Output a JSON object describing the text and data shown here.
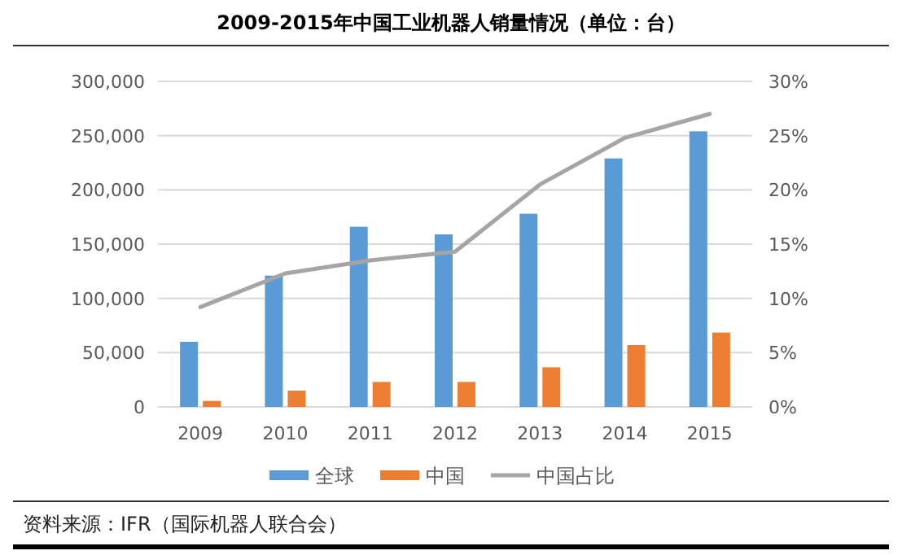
{
  "chart_data": {
    "type": "bar",
    "title": "2009-2015年中国工业机器人销量情况（单位：台）",
    "categories": [
      "2009",
      "2010",
      "2011",
      "2012",
      "2013",
      "2014",
      "2015"
    ],
    "series": [
      {
        "name": "全球",
        "color": "#5b9bd5",
        "values": [
          60000,
          121000,
          166000,
          159000,
          178000,
          229000,
          254000
        ]
      },
      {
        "name": "中国",
        "color": "#ed7d31",
        "values": [
          5500,
          15000,
          23000,
          23000,
          36500,
          57000,
          68500
        ]
      },
      {
        "name": "中国占比",
        "type": "line",
        "axis": "y2",
        "color": "#a5a5a5",
        "values": [
          9.2,
          12.3,
          13.5,
          14.3,
          20.5,
          24.8,
          27.0
        ]
      }
    ],
    "ylim": [
      0,
      300000
    ],
    "yticks": [
      {
        "value": 0,
        "label": "0"
      },
      {
        "value": 50000,
        "label": "50,000"
      },
      {
        "value": 100000,
        "label": "100,000"
      },
      {
        "value": 150000,
        "label": "150,000"
      },
      {
        "value": 200000,
        "label": "200,000"
      },
      {
        "value": 250000,
        "label": "250,000"
      },
      {
        "value": 300000,
        "label": "300,000"
      }
    ],
    "y2lim": [
      0,
      30
    ],
    "y2ticks": [
      {
        "value": 0,
        "label": "0%"
      },
      {
        "value": 5,
        "label": "5%"
      },
      {
        "value": 10,
        "label": "10%"
      },
      {
        "value": 15,
        "label": "15%"
      },
      {
        "value": 20,
        "label": "20%"
      },
      {
        "value": 25,
        "label": "25%"
      },
      {
        "value": 30,
        "label": "30%"
      }
    ],
    "grid": "y",
    "legend": "bottom",
    "annotations": [
      "资料来源：IFR（国际机器人联合会）"
    ]
  }
}
